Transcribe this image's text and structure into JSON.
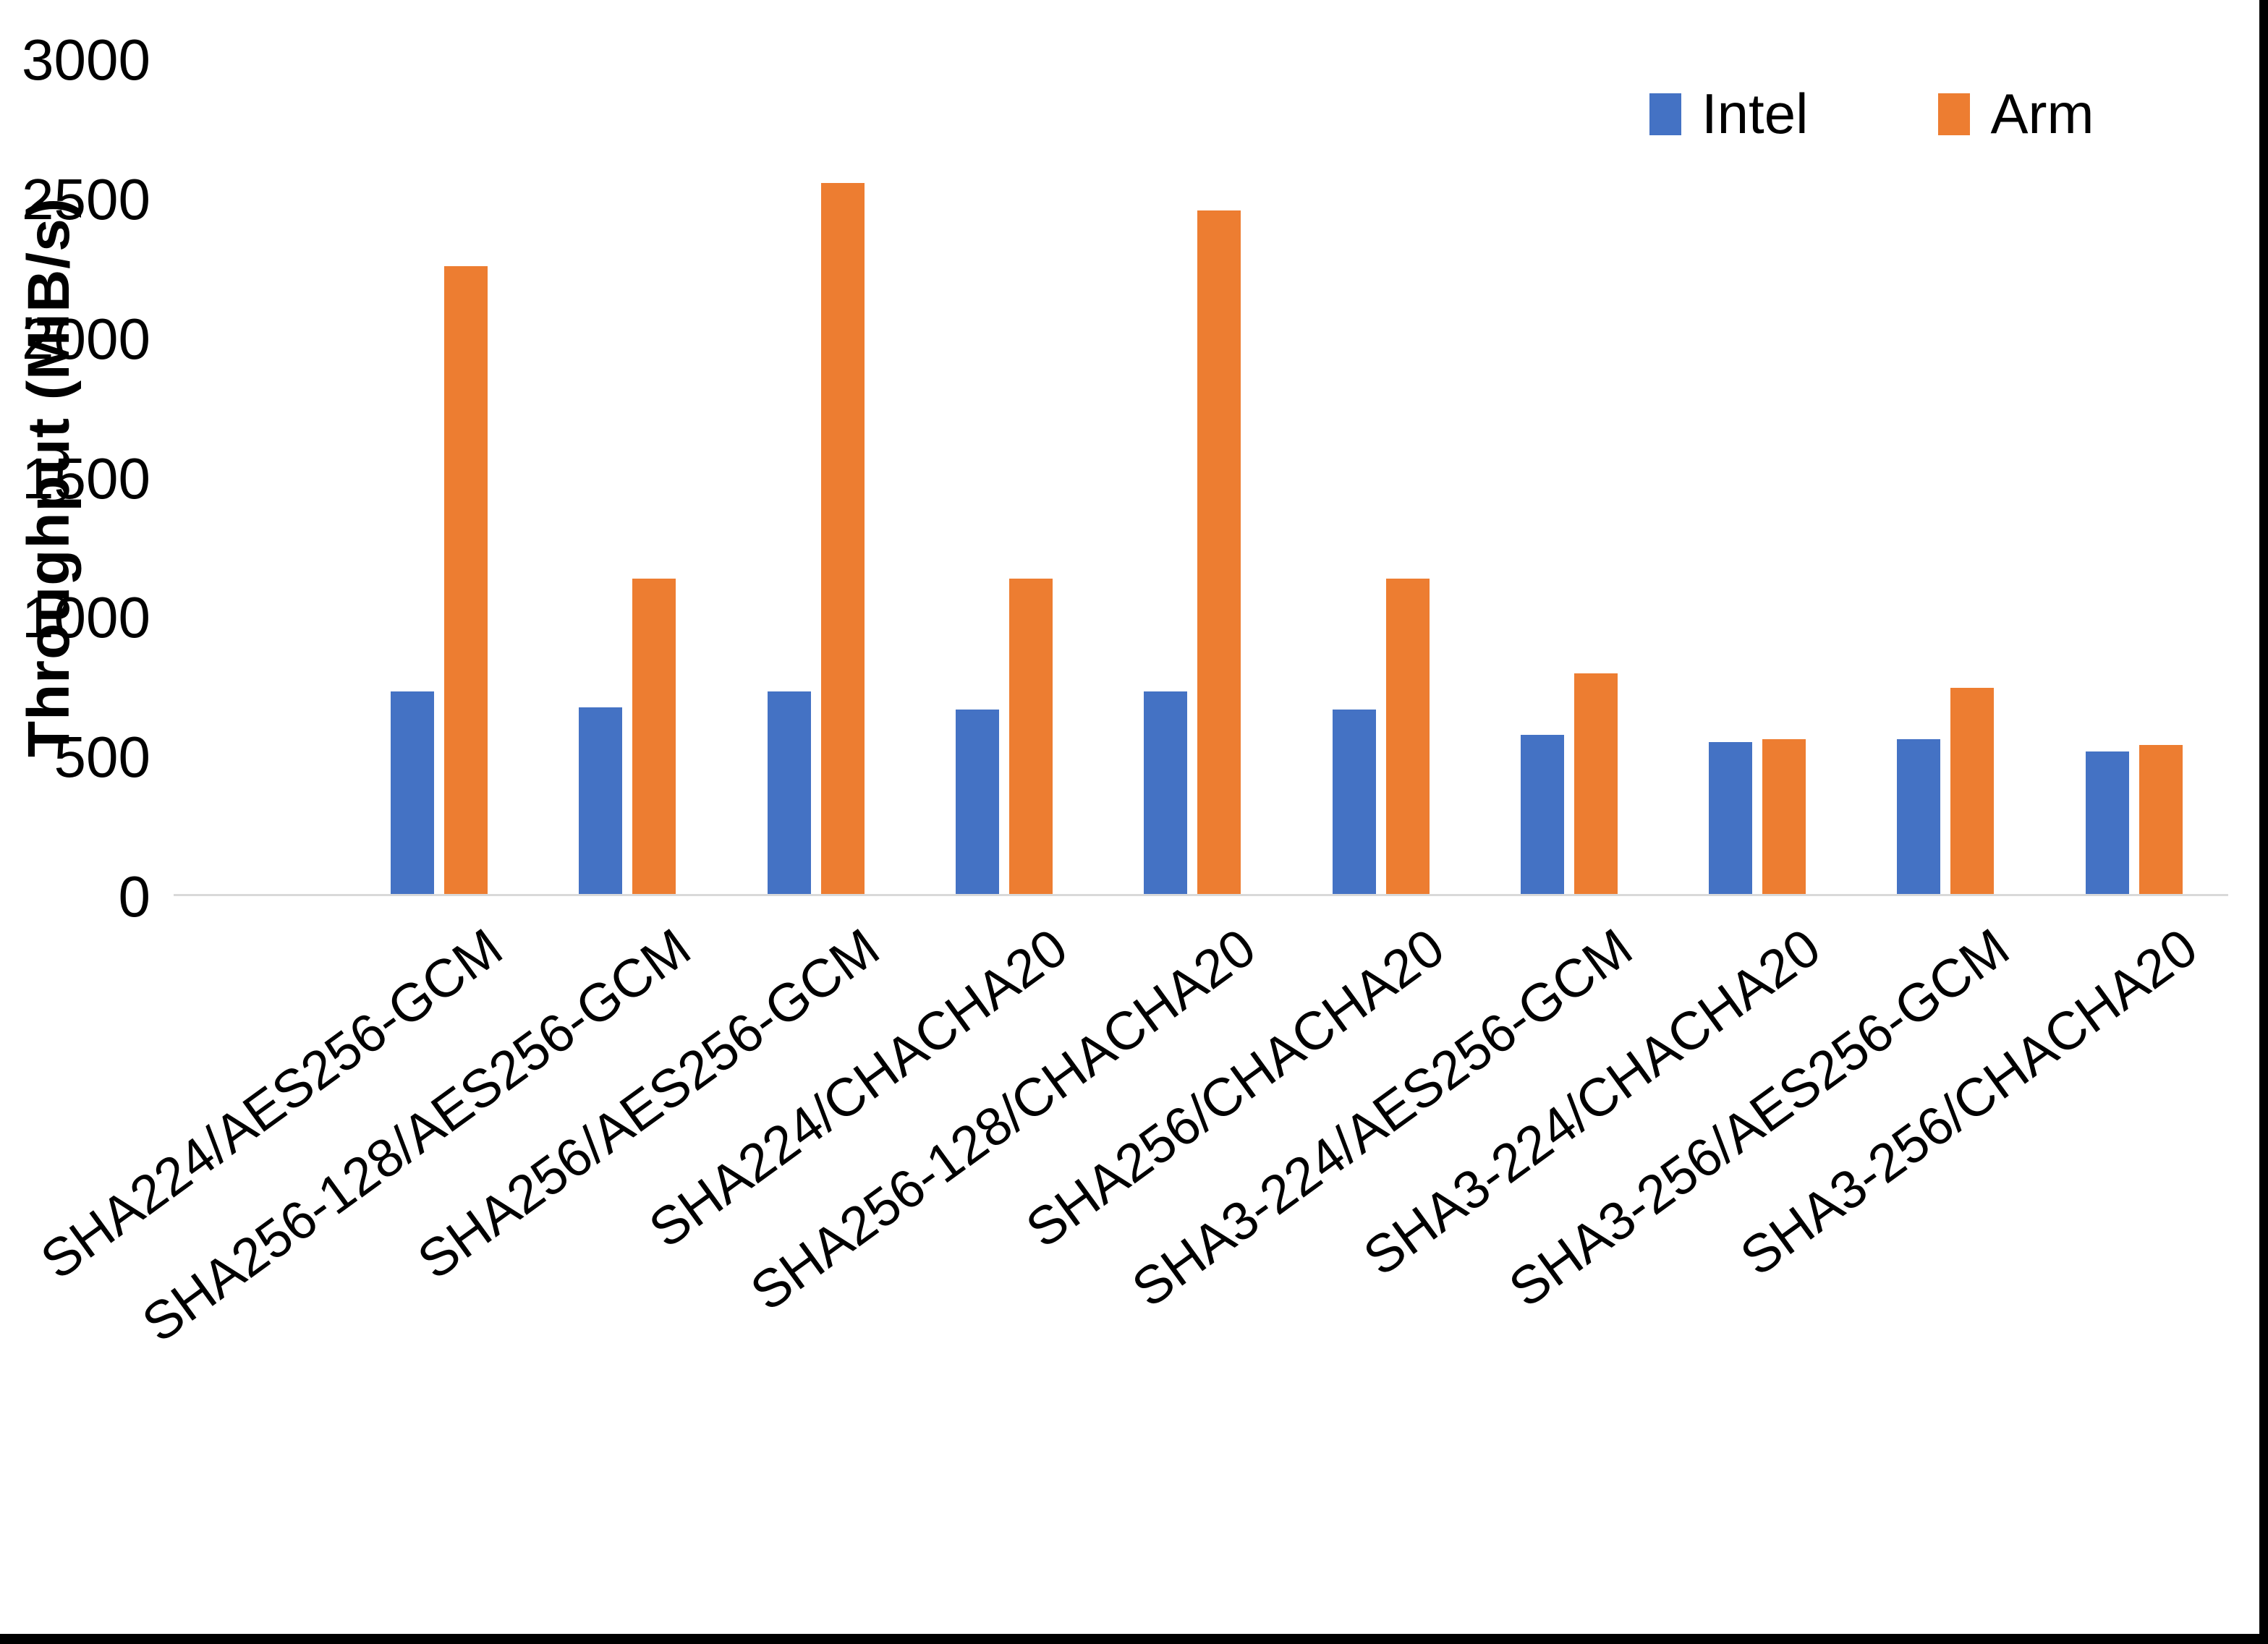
{
  "chart_data": {
    "type": "bar",
    "title": "",
    "ylabel": "Throughput (MiB/s)",
    "xlabel": "",
    "ylim": [
      0,
      3000
    ],
    "yticks": [
      0,
      500,
      1000,
      1500,
      2000,
      2500,
      3000
    ],
    "grid": false,
    "legend_position": "top-right",
    "categories": [
      "SHA224/AES256-GCM",
      "SHA256-128/AES256-GCM",
      "SHA256/AES256-GCM",
      "SHA224/CHACHA20",
      "SHA256-128/CHACHA20",
      "SHA256/CHACHA20",
      "SHA3-224/AES256-GCM",
      "SHA3-224/CHACHA20",
      "SHA3-256/AES256-GCM",
      "SHA3-256/CHACHA20"
    ],
    "series": [
      {
        "name": "Intel",
        "color": "#4472C4",
        "values": [
          725,
          670,
          725,
          660,
          725,
          660,
          570,
          545,
          555,
          510
        ]
      },
      {
        "name": "Arm",
        "color": "#ED7D31",
        "values": [
          2250,
          1130,
          2550,
          1130,
          2450,
          1130,
          790,
          555,
          740,
          535
        ]
      }
    ]
  },
  "frame": {
    "right_border_color": "#000000",
    "bottom_border_color": "#000000",
    "axis_line_color": "#d9d9d9"
  }
}
